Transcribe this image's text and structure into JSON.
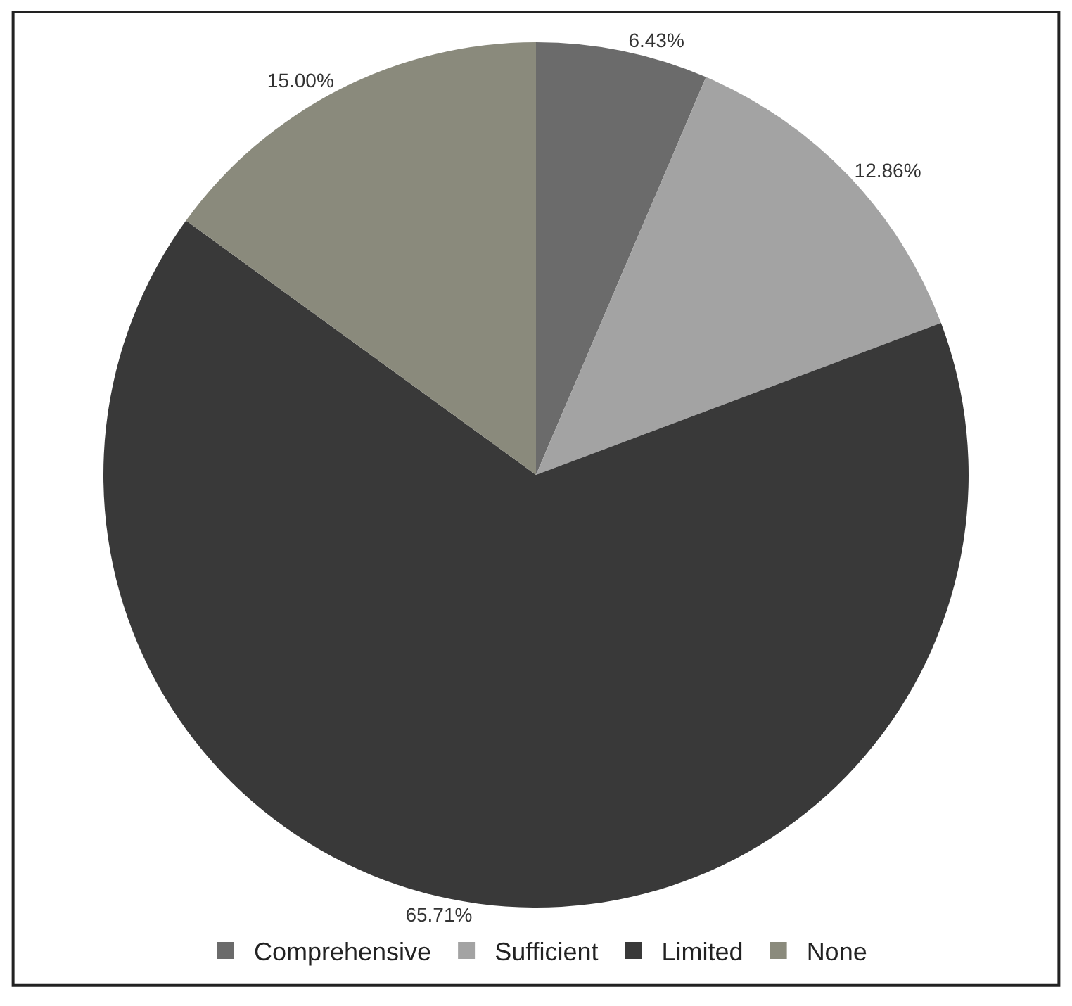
{
  "chart_data": {
    "type": "pie",
    "categories": [
      "Comprehensive",
      "Sufficient",
      "Limited",
      "None"
    ],
    "values": [
      6.43,
      12.86,
      65.71,
      15.0
    ],
    "colors": [
      "#6b6b6b",
      "#a3a3a3",
      "#393939",
      "#8a8a7c"
    ],
    "value_labels": [
      "6.43%",
      "12.86%",
      "65.71%",
      "15.00%"
    ],
    "legend": "bottom"
  }
}
